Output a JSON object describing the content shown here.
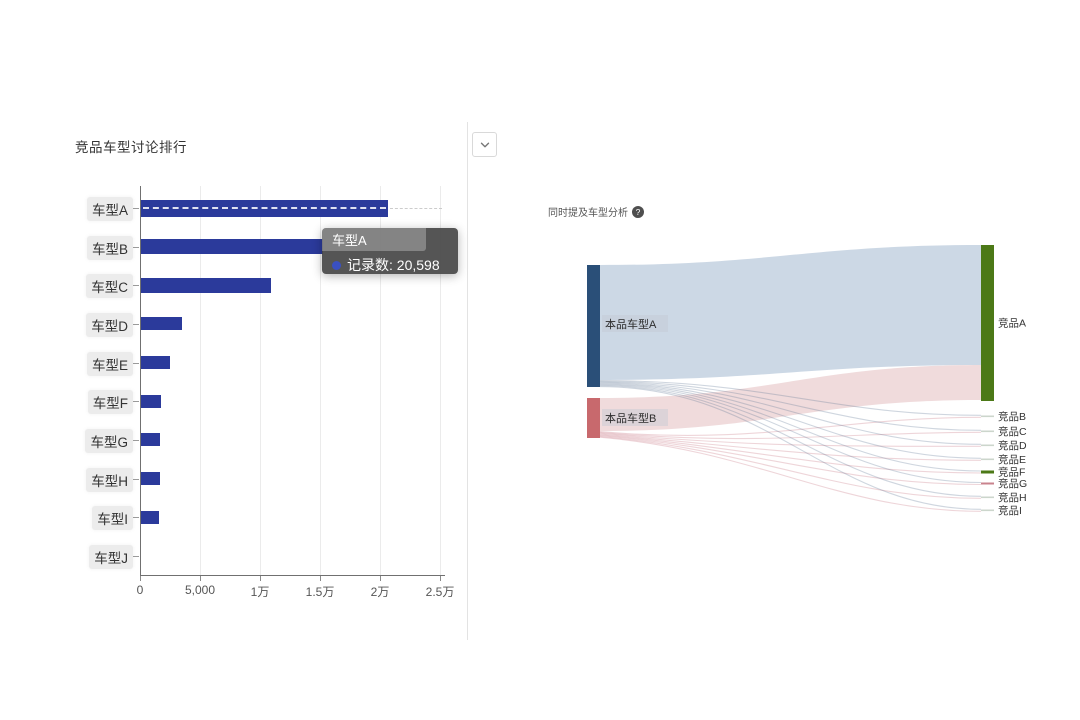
{
  "left_panel": {
    "title": "竞品车型讨论排行",
    "tooltip": {
      "title": "车型A",
      "text": "记录数: 20,598",
      "dot_color": "#3a50c2"
    },
    "chart_data": {
      "type": "bar",
      "orientation": "horizontal",
      "title": "竞品车型讨论排行",
      "categories": [
        "车型A",
        "车型B",
        "车型C",
        "车型D",
        "车型E",
        "车型F",
        "车型G",
        "车型H",
        "车型I",
        "车型J"
      ],
      "values": [
        20598,
        15200,
        10800,
        3400,
        2400,
        1700,
        1600,
        1600,
        1500,
        0
      ],
      "highlighted_category": "车型A",
      "highlighted_value": 20598,
      "x_ticks": [
        "0",
        "5,000",
        "1万",
        "1.5万",
        "2万",
        "2.5万"
      ],
      "xlim": [
        0,
        25000
      ],
      "xlabel": "",
      "ylabel": "",
      "bar_color": "#2b3a9b",
      "grid": "vertical"
    }
  },
  "right_panel": {
    "title": "同时提及车型分析",
    "help_glyph": "?",
    "chart_data": {
      "type": "sankey",
      "title": "同时提及车型分析",
      "nodes": [
        {
          "name": "本品车型A",
          "side": "left",
          "color": "#2a4f78"
        },
        {
          "name": "本品车型B",
          "side": "left",
          "color": "#c8696d"
        },
        {
          "name": "竞品A",
          "side": "right",
          "color": "#4c7917"
        },
        {
          "name": "竞品B",
          "side": "right",
          "color": "#ccd6cc"
        },
        {
          "name": "竞品C",
          "side": "right",
          "color": "#ccd6cc"
        },
        {
          "name": "竞品D",
          "side": "right",
          "color": "#ccd6cc"
        },
        {
          "name": "竞品E",
          "side": "right",
          "color": "#ccd6cc"
        },
        {
          "name": "竞品F",
          "side": "right",
          "color": "#4c7917"
        },
        {
          "name": "竞品G",
          "side": "right",
          "color": "#c9838d"
        },
        {
          "name": "竞品H",
          "side": "right",
          "color": "#ccd6cc"
        },
        {
          "name": "竞品I",
          "side": "right",
          "color": "#ccd6cc"
        }
      ],
      "links": [
        {
          "source": "本品车型A",
          "target": "竞品A",
          "weight": 115
        },
        {
          "source": "本品车型B",
          "target": "竞品A",
          "weight": 33
        },
        {
          "source": "本品车型A",
          "target": "竞品B",
          "weight": 1
        },
        {
          "source": "本品车型A",
          "target": "竞品C",
          "weight": 1
        },
        {
          "source": "本品车型A",
          "target": "竞品D",
          "weight": 1
        },
        {
          "source": "本品车型A",
          "target": "竞品E",
          "weight": 1
        },
        {
          "source": "本品车型A",
          "target": "竞品F",
          "weight": 1
        },
        {
          "source": "本品车型A",
          "target": "竞品G",
          "weight": 1
        },
        {
          "source": "本品车型A",
          "target": "竞品H",
          "weight": 1
        },
        {
          "source": "本品车型A",
          "target": "竞品I",
          "weight": 1
        },
        {
          "source": "本品车型B",
          "target": "竞品B",
          "weight": 1
        },
        {
          "source": "本品车型B",
          "target": "竞品C",
          "weight": 1
        },
        {
          "source": "本品车型B",
          "target": "竞品D",
          "weight": 1
        },
        {
          "source": "本品车型B",
          "target": "竞品E",
          "weight": 1
        },
        {
          "source": "本品车型B",
          "target": "竞品F",
          "weight": 1
        },
        {
          "source": "本品车型B",
          "target": "竞品G",
          "weight": 1
        },
        {
          "source": "本品车型B",
          "target": "竞品H",
          "weight": 1
        },
        {
          "source": "本品车型B",
          "target": "竞品I",
          "weight": 1
        }
      ],
      "flow_colors": {
        "from_A": "#c6d4e2",
        "from_B": "#efd9da"
      },
      "legend_position": "none"
    }
  }
}
